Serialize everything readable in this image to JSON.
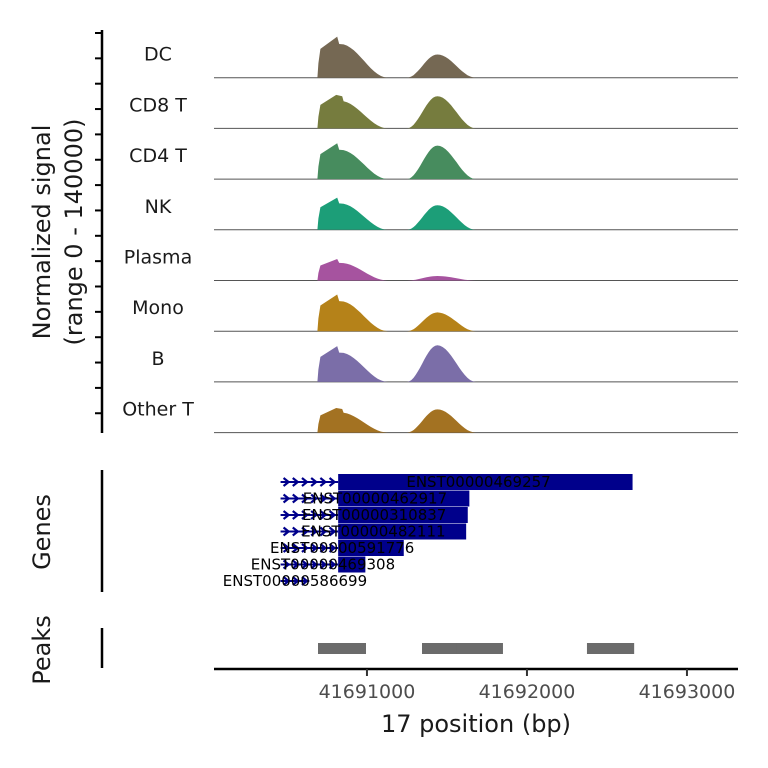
{
  "chart_data": {
    "type": "area",
    "title": "",
    "xlabel": "17 position (bp)",
    "ylabel": "Normalized signal\n(range 0 - 140000)",
    "ylabel_lines": [
      "Normalized signal",
      "(range 0 - 140000)"
    ],
    "xlim": [
      41690044,
      41693319
    ],
    "ylim": [
      0,
      140000
    ],
    "x_ticks": [
      41691000,
      41692000,
      41693000
    ],
    "x_tick_labels": [
      "41691000",
      "41692000",
      "41693000"
    ],
    "grid": false,
    "tracks": [
      {
        "name": "DC",
        "color": "#756853",
        "peak1": 0.92,
        "peak2": 0.52,
        "spike": true
      },
      {
        "name": "CD8 T",
        "color": "#767c3e",
        "peak1": 0.75,
        "peak2": 0.72,
        "spike": false
      },
      {
        "name": "CD4 T",
        "color": "#478c5e",
        "peak1": 0.8,
        "peak2": 0.75,
        "spike": true
      },
      {
        "name": "NK",
        "color": "#1c9e78",
        "peak1": 0.72,
        "peak2": 0.55,
        "spike": true
      },
      {
        "name": "Plasma",
        "color": "#a6539f",
        "peak1": 0.48,
        "peak2": 0.1,
        "spike": true
      },
      {
        "name": "Mono",
        "color": "#b58219",
        "peak1": 0.82,
        "peak2": 0.42,
        "spike": true
      },
      {
        "name": "B",
        "color": "#7b6ea8",
        "peak1": 0.8,
        "peak2": 0.82,
        "spike": true
      },
      {
        "name": "Other T",
        "color": "#a37222",
        "peak1": 0.55,
        "peak2": 0.52,
        "spike": false
      }
    ],
    "signal_regions": {
      "region1": {
        "start": 41690690,
        "summit": 41690820,
        "end": 41691130
      },
      "region2": {
        "start": 41691250,
        "summit": 41691440,
        "end": 41691680
      }
    },
    "genes_label": "Genes",
    "gene_color": "#00008b",
    "genes": [
      {
        "name": "ENST00000469257",
        "start": 41690460,
        "end": 41692660,
        "exon_start": 41690820,
        "strand": "+"
      },
      {
        "name": "ENST00000462917",
        "start": 41690460,
        "end": 41691640,
        "exon_start": 41690820,
        "strand": "+"
      },
      {
        "name": "ENST00000310837",
        "start": 41690460,
        "end": 41691630,
        "exon_start": 41690820,
        "strand": "+"
      },
      {
        "name": "ENST00000482111",
        "start": 41690460,
        "end": 41691620,
        "exon_start": 41690820,
        "strand": "+"
      },
      {
        "name": "ENST00000591776",
        "start": 41690460,
        "end": 41691230,
        "exon_start": 41690820,
        "strand": "+"
      },
      {
        "name": "ENST00000469308",
        "start": 41690460,
        "end": 41690990,
        "exon_start": 41690820,
        "strand": "+"
      },
      {
        "name": "ENST00000586699",
        "start": 41690460,
        "end": 41690640,
        "exon_start": null,
        "strand": "+"
      }
    ],
    "peaks_label": "Peaks",
    "peak_color": "#6b6b6b",
    "peaks": [
      {
        "start": 41690694,
        "end": 41690994
      },
      {
        "start": 41691344,
        "end": 41691570
      },
      {
        "start": 41691560,
        "end": 41691850
      },
      {
        "start": 41692375,
        "end": 41692670
      }
    ]
  }
}
